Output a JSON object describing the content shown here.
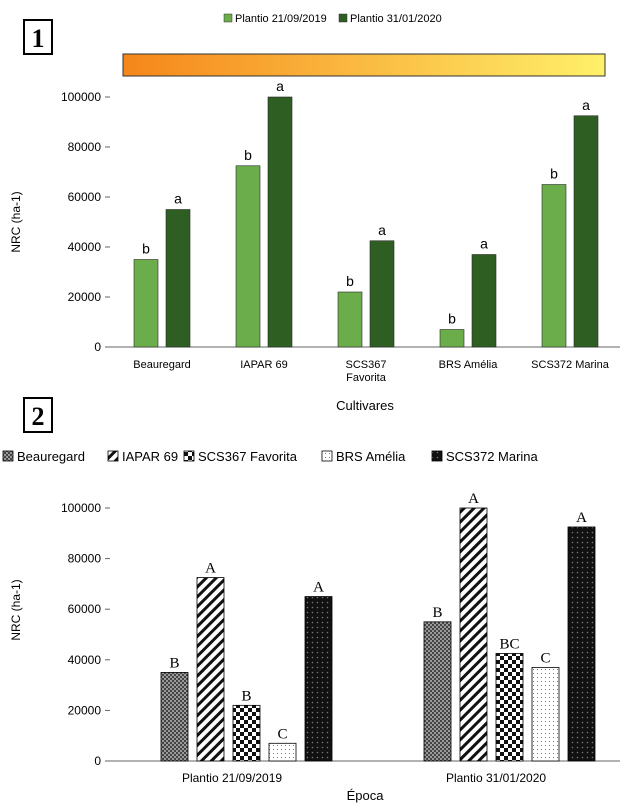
{
  "panel1": {
    "panel_label": "1",
    "legend": [
      "Plantio 21/09/2019",
      "Plantio 31/01/2020"
    ],
    "ylabel": "NRC  (ha-1)",
    "xlabel": "Cultivares",
    "y_ticks": [
      "0",
      "20000",
      "40000",
      "60000",
      "80000",
      "100000"
    ],
    "colors": {
      "s1": "#6aad4a",
      "s2": "#2e5e22",
      "band_start": "#f5861a",
      "band_end": "#fff06a"
    },
    "chart_data": {
      "type": "bar",
      "categories": [
        "Beauregard",
        "IAPAR 69",
        "SCS367\nFavorita",
        "BRS Amélia",
        "SCS372 Marina"
      ],
      "series": [
        {
          "name": "Plantio 21/09/2019",
          "values": [
            35000,
            72500,
            22000,
            7000,
            65000
          ],
          "labels": [
            "b",
            "b",
            "b",
            "b",
            "b"
          ]
        },
        {
          "name": "Plantio 31/01/2020",
          "values": [
            55000,
            100000,
            42500,
            37000,
            92500
          ],
          "labels": [
            "a",
            "a",
            "a",
            "a",
            "a"
          ]
        }
      ],
      "ylim": [
        0,
        100000
      ]
    }
  },
  "panel2": {
    "panel_label": "2",
    "legend": [
      "Beauregard",
      "IAPAR 69",
      "SCS367 Favorita",
      "BRS Amélia",
      "SCS372 Marina"
    ],
    "ylabel": "NRC  (ha-1)",
    "xlabel": "Época",
    "y_ticks": [
      "0",
      "20000",
      "40000",
      "60000",
      "80000",
      "100000"
    ],
    "chart_data": {
      "type": "bar",
      "categories": [
        "Plantio 21/09/2019",
        "Plantio 31/01/2020"
      ],
      "series": [
        {
          "name": "Beauregard",
          "values": [
            35000,
            55000
          ],
          "labels": [
            "B",
            "B"
          ]
        },
        {
          "name": "IAPAR 69",
          "values": [
            72500,
            100000
          ],
          "labels": [
            "A",
            "A"
          ]
        },
        {
          "name": "SCS367 Favorita",
          "values": [
            22000,
            42500
          ],
          "labels": [
            "B",
            "BC"
          ]
        },
        {
          "name": "BRS Amélia",
          "values": [
            7000,
            37000
          ],
          "labels": [
            "C",
            "C"
          ]
        },
        {
          "name": "SCS372 Marina",
          "values": [
            65000,
            92500
          ],
          "labels": [
            "A",
            "A"
          ]
        }
      ],
      "ylim": [
        0,
        100000
      ]
    }
  }
}
